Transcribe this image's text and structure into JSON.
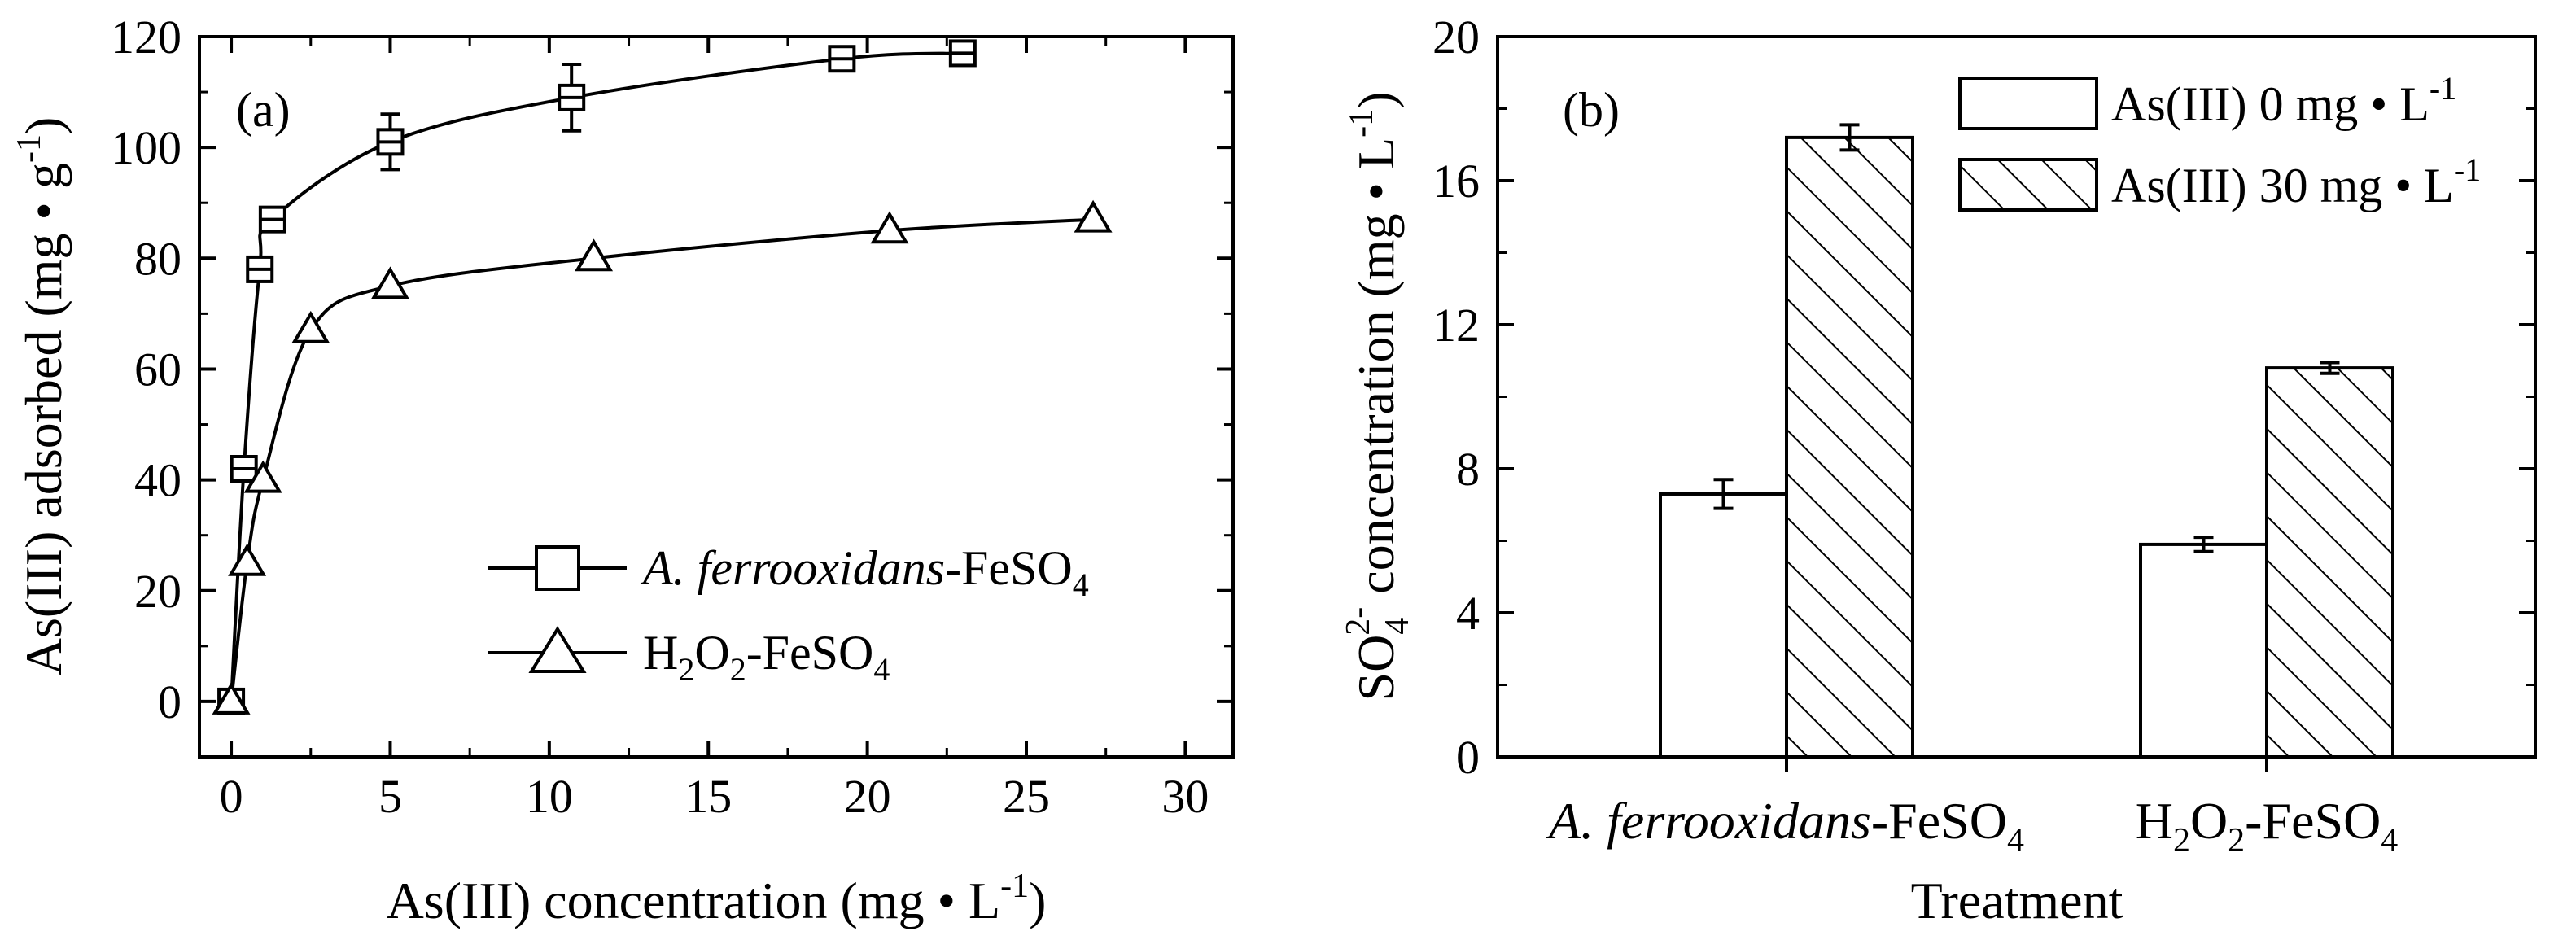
{
  "chart_data": [
    {
      "type": "line",
      "panel_label": "(a)",
      "xlabel": "As(III) concentration (mg • L",
      "xlabel_sup": "-1",
      "xlabel_end": ")",
      "ylabel": "As(III) adsorbed (mg • g",
      "ylabel_sup": "-1",
      "ylabel_end": ")",
      "xlim": [
        -1,
        31.5
      ],
      "ylim": [
        -10,
        120
      ],
      "xticks": [
        0,
        5,
        10,
        15,
        20,
        25,
        30
      ],
      "xtick_labels": [
        "0",
        "5",
        "10",
        "15",
        "20",
        "25",
        "30"
      ],
      "yticks": [
        0,
        20,
        40,
        60,
        80,
        100,
        120
      ],
      "ytick_labels": [
        "0",
        "20",
        "40",
        "60",
        "80",
        "100",
        "120"
      ],
      "legend_position": "lower-right",
      "series": [
        {
          "name": "A. ferrooxidans-FeSO4",
          "name_italic": "A. ferrooxidans",
          "name_plain": "-FeSO",
          "name_sub": "4",
          "marker": "square",
          "x": [
            0,
            0.4,
            0.9,
            1.3,
            5.0,
            10.7,
            19.2,
            23.0
          ],
          "y": [
            0,
            42,
            78,
            87,
            101,
            109,
            116,
            117
          ],
          "err": [
            0,
            0,
            0,
            0,
            5,
            6,
            2,
            2
          ]
        },
        {
          "name": "H2O2-FeSO4",
          "name_h": "H",
          "name_sub1": "2",
          "name_o": "O",
          "name_sub2": "2",
          "name_plain": "-FeSO",
          "name_sub3": "4",
          "marker": "triangle",
          "x": [
            0,
            0.5,
            1.0,
            2.5,
            5.0,
            11.4,
            20.7,
            27.1
          ],
          "y": [
            0,
            25,
            40,
            67,
            75,
            80,
            85,
            87
          ],
          "err": [
            0,
            0,
            0,
            0,
            0,
            0,
            0,
            0
          ]
        }
      ]
    },
    {
      "type": "bar",
      "panel_label": "(b)",
      "xlabel": "Treatment",
      "ylabel_so": "SO",
      "ylabel_sub": "4",
      "ylabel_sup": "2-",
      "ylabel_rest": " concentration (mg • L",
      "ylabel_sup2": "-1",
      "ylabel_end": ")",
      "ylim": [
        0,
        20
      ],
      "yticks": [
        0,
        4,
        8,
        12,
        16,
        20
      ],
      "ytick_labels": [
        "0",
        "4",
        "8",
        "12",
        "16",
        "20"
      ],
      "legend_position": "top-right",
      "categories": [
        {
          "label": "A. ferrooxidans-FeSO4",
          "italic": "A. ferrooxidans",
          "plain": "-FeSO",
          "sub": "4"
        },
        {
          "label": "H2O2-FeSO4",
          "h": "H",
          "sub1": "2",
          "o": "O",
          "sub2": "2",
          "plain": "-FeSO",
          "sub3": "4"
        }
      ],
      "series": [
        {
          "name": "As(III) 0 mg • L-1",
          "legend_text": "As(III) 0 mg • L",
          "legend_sup": "-1",
          "fill": "open",
          "values": [
            7.3,
            5.9
          ],
          "err": [
            0.4,
            0.2
          ]
        },
        {
          "name": "As(III) 30 mg • L-1",
          "legend_text": "As(III) 30 mg • L",
          "legend_sup": "-1",
          "fill": "hatched",
          "values": [
            17.2,
            10.8
          ],
          "err": [
            0.35,
            0.15
          ]
        }
      ]
    }
  ],
  "colors": {
    "ink": "#000000",
    "paper": "#ffffff"
  }
}
